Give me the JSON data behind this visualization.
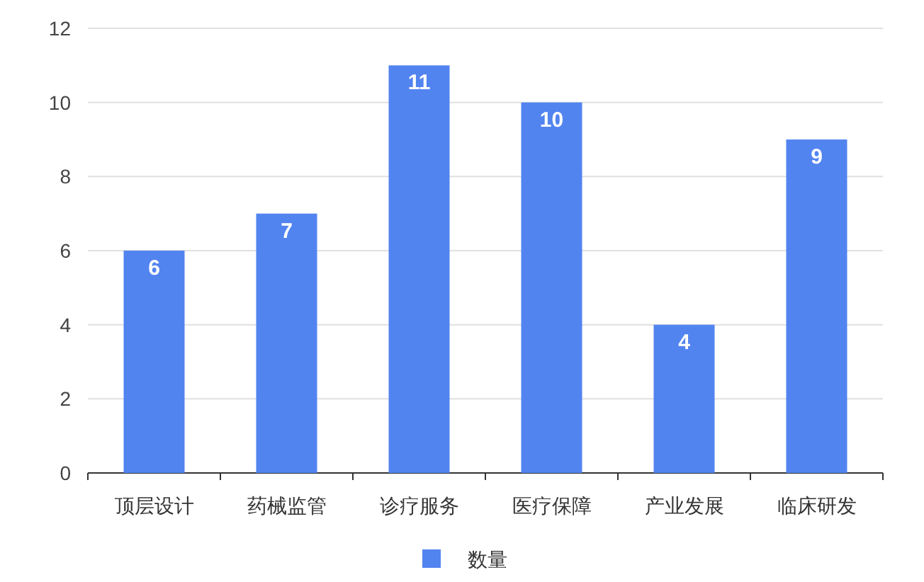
{
  "chart_data": {
    "type": "bar",
    "categories": [
      "顶层设计",
      "药械监管",
      "诊疗服务",
      "医疗保障",
      "产业发展",
      "临床研发"
    ],
    "series": [
      {
        "name": "数量",
        "color": "#5284f0",
        "values": [
          6,
          7,
          11,
          10,
          4,
          9
        ]
      }
    ],
    "ylim": [
      0,
      12
    ],
    "yticks": [
      0,
      2,
      4,
      6,
      8,
      10,
      12
    ],
    "grid": "y",
    "legend": "bottom",
    "data_labels": true
  }
}
